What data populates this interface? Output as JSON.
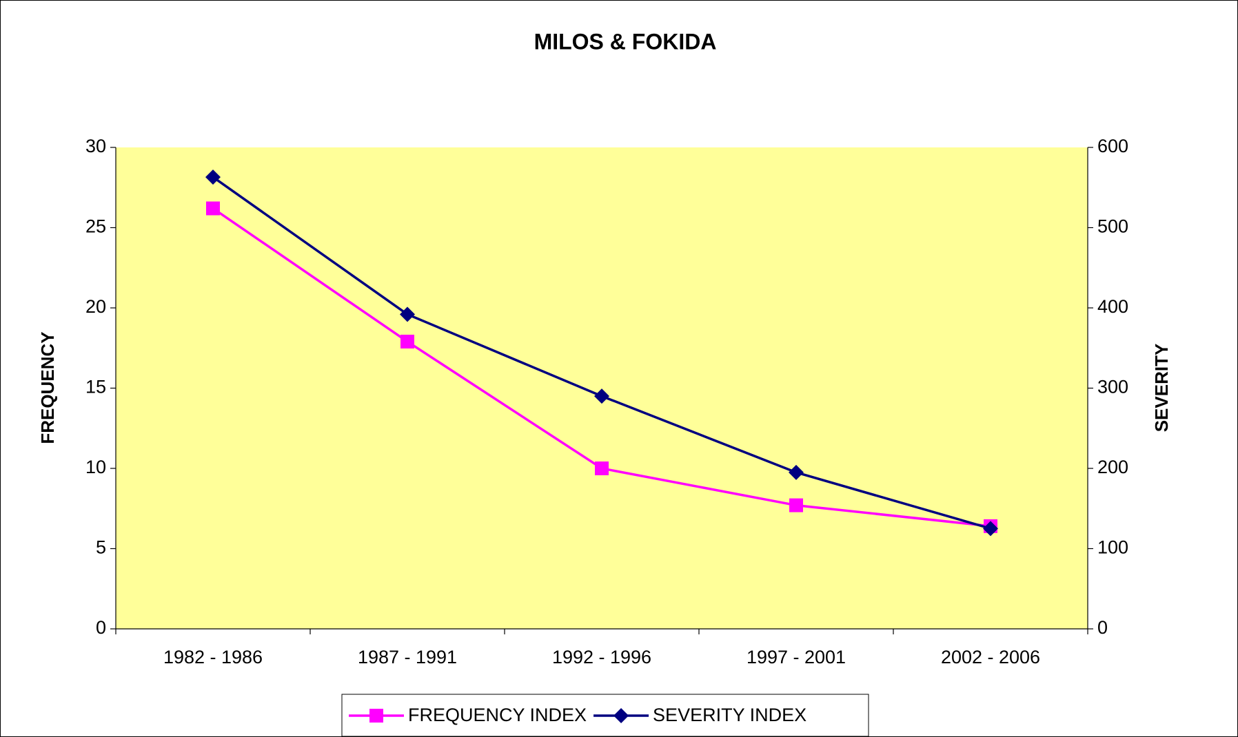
{
  "chart_data": {
    "type": "line",
    "title": "MILOS & FOKIDA",
    "categories": [
      "1982 - 1986",
      "1987 - 1991",
      "1992 - 1996",
      "1997 - 2001",
      "2002 - 2006"
    ],
    "series": [
      {
        "name": "FREQUENCY INDEX",
        "color": "#ff00ff",
        "marker": "square",
        "values": [
          26.2,
          17.9,
          10.0,
          7.7,
          6.4
        ]
      },
      {
        "name": "SEVERITY INDEX",
        "color": "#000080",
        "marker": "diamond",
        "axis": "y2",
        "values": [
          563,
          392,
          290,
          195,
          125
        ]
      }
    ],
    "y_label": "FREQUENCY",
    "y2_label": "SEVERITY",
    "ylim": [
      0,
      30
    ],
    "yticks": [
      0,
      5,
      10,
      15,
      20,
      25,
      30
    ],
    "y2lim": [
      0,
      600
    ],
    "y2ticks": [
      0,
      100,
      200,
      300,
      400,
      500,
      600
    ],
    "plot_background": "#ffff99",
    "legend": "bottom"
  }
}
